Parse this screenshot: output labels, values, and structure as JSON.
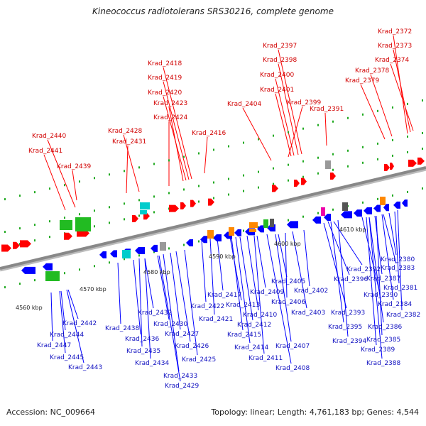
{
  "title": "Kineococcus radiotolerans SRS30216, complete genome",
  "footer": {
    "accession": "Accession: NC_009664",
    "summary": "Topology: linear; Length: 4,761,183 bp; Genes: 4,544"
  },
  "scale_labels": [
    "4560 kbp",
    "4570 kbp",
    "4580 kbp",
    "4590 kbp",
    "4600 kbp",
    "4610 kbp"
  ],
  "colors": {
    "forward_gene": "#ff0000",
    "reverse_gene": "#0000ff",
    "rRNA_green": "#22bb22",
    "tRNA_cyan": "#00cccc",
    "orange": "#ff8800",
    "gray": "#999999",
    "dark_gray": "#555555",
    "magenta": "#ee00aa",
    "backbone": "#888888"
  },
  "top_labels": [
    "Krad_2372",
    "Krad_2373",
    "Krad_2374",
    "Krad_2378",
    "Krad_2379",
    "Krad_2397",
    "Krad_2398",
    "Krad_2400",
    "Krad_2401",
    "Krad_2399",
    "Krad_2391",
    "Krad_2404",
    "Krad_2418",
    "Krad_2419",
    "Krad_2420",
    "Krad_2423",
    "Krad_2424",
    "Krad_2416",
    "Krad_2428",
    "Krad_2431",
    "Krad_2440",
    "Krad_2441",
    "Krad_2439"
  ],
  "bottom_labels": [
    "Krad_2380",
    "Krad_2383",
    "Krad_2392",
    "Krad_2387",
    "Krad_2396",
    "Krad_2381",
    "Krad_2390",
    "Krad_2384",
    "Krad_2393",
    "Krad_2382",
    "Krad_2386",
    "Krad_2395",
    "Krad_2394",
    "Krad_2385",
    "Krad_2389",
    "Krad_2388",
    "Krad_2405",
    "Krad_2402",
    "Krad_2406",
    "Krad_2409",
    "Krad_2403",
    "Krad_2417",
    "Krad_2413",
    "Krad_2410",
    "Krad_2422",
    "Krad_2421",
    "Krad_2412",
    "Krad_2415",
    "Krad_2407",
    "Krad_2414",
    "Krad_2411",
    "Krad_2408",
    "Krad_2432",
    "Krad_2438",
    "Krad_2430",
    "Krad_2436",
    "Krad_2427",
    "Krad_2435",
    "Krad_2426",
    "Krad_2425",
    "Krad_2434",
    "Krad_2433",
    "Krad_2429",
    "Krad_2442",
    "Krad_2444",
    "Krad_2447",
    "Krad_2445",
    "Krad_2443"
  ]
}
